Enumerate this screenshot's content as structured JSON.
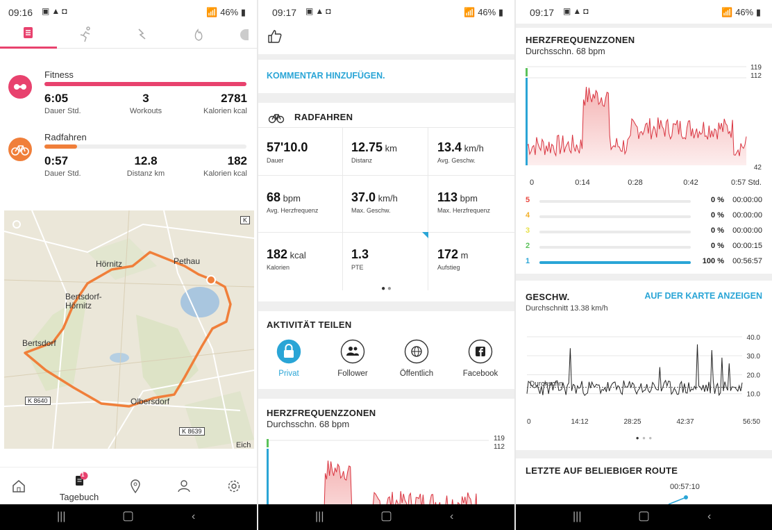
{
  "panel1": {
    "status": {
      "time": "09:16",
      "battery": "46%"
    },
    "tabs": [
      {
        "icon": "diary-icon"
      },
      {
        "icon": "running-icon"
      },
      {
        "icon": "activity-icon"
      },
      {
        "icon": "fire-icon"
      }
    ],
    "fitness": {
      "title": "Fitness",
      "stats": [
        {
          "value": "6:05",
          "label": "Dauer Std."
        },
        {
          "value": "3",
          "label": "Workouts"
        },
        {
          "value": "2781",
          "label": "Kalorien kcal"
        }
      ],
      "progress": 1.0
    },
    "cycling": {
      "title": "Radfahren",
      "stats": [
        {
          "value": "0:57",
          "label": "Dauer Std."
        },
        {
          "value": "12.8",
          "label": "Distanz km"
        },
        {
          "value": "182",
          "label": "Kalorien kcal"
        }
      ],
      "progress": 0.16
    },
    "map": {
      "places": [
        "Hörnitz",
        "Pethau",
        "Bertsdorf-Hörnitz",
        "Bertsdorf",
        "Olbersdorf",
        "Eich"
      ],
      "roads": [
        "K 8640",
        "K 8639",
        "K"
      ]
    },
    "bottom_nav": [
      {
        "label": "",
        "icon": "home-icon"
      },
      {
        "label": "Tagebuch",
        "icon": "diary-icon",
        "badge": "1"
      },
      {
        "label": "",
        "icon": "location-icon"
      },
      {
        "label": "",
        "icon": "profile-icon"
      },
      {
        "label": "",
        "icon": "settings-icon"
      }
    ]
  },
  "panel2": {
    "status": {
      "time": "09:17",
      "battery": "46%"
    },
    "comment_link": "KOMMENTAR HINZUFÜGEN.",
    "activity_title": "RADFAHREN",
    "metrics": [
      {
        "value": "57'10.0",
        "unit": "",
        "label": "Dauer"
      },
      {
        "value": "12.75",
        "unit": "km",
        "label": "Distanz"
      },
      {
        "value": "13.4",
        "unit": "km/h",
        "label": "Avg. Geschw."
      },
      {
        "value": "68",
        "unit": "bpm",
        "label": "Avg. Herzfrequenz"
      },
      {
        "value": "37.0",
        "unit": "km/h",
        "label": "Max. Geschw."
      },
      {
        "value": "113",
        "unit": "bpm",
        "label": "Max. Herzfrequenz"
      },
      {
        "value": "182",
        "unit": "kcal",
        "label": "Kalorien"
      },
      {
        "value": "1.3",
        "unit": "",
        "label": "PTE"
      },
      {
        "value": "172",
        "unit": "m",
        "label": "Aufstieg"
      }
    ],
    "share_title": "AKTIVITÄT TEILEN",
    "share_options": [
      {
        "label": "Privat",
        "icon": "lock-icon",
        "selected": true
      },
      {
        "label": "Follower",
        "icon": "followers-icon",
        "selected": false
      },
      {
        "label": "Öffentlich",
        "icon": "globe-icon",
        "selected": false
      },
      {
        "label": "Facebook",
        "icon": "facebook-icon",
        "selected": false
      }
    ],
    "hr_title": "HERZFREQUENZZONEN",
    "hr_sub": "Durchsschn. 68 bpm",
    "hr_y_top": "119",
    "hr_y_second": "112"
  },
  "panel3": {
    "status": {
      "time": "09:17",
      "battery": "46%"
    },
    "hr_title": "HERZFREQUENZZONEN",
    "hr_sub": "Durchsschn. 68 bpm",
    "hr_y": [
      "119",
      "112",
      "42"
    ],
    "hr_x": [
      "0",
      "0:14",
      "0:28",
      "0:42",
      "0:57 Std."
    ],
    "zones": [
      {
        "zone": "5",
        "color": "#e9473f",
        "percent": "0 %",
        "time": "00:00:00",
        "fill": 0
      },
      {
        "zone": "4",
        "color": "#f3b12c",
        "percent": "0 %",
        "time": "00:00:00",
        "fill": 0
      },
      {
        "zone": "3",
        "color": "#e7e04a",
        "percent": "0 %",
        "time": "00:00:00",
        "fill": 0
      },
      {
        "zone": "2",
        "color": "#5bc25a",
        "percent": "0 %",
        "time": "00:00:15",
        "fill": 0
      },
      {
        "zone": "1",
        "color": "#2aa5d6",
        "percent": "100 %",
        "time": "00:56:57",
        "fill": 1
      }
    ],
    "speed_title": "GESCHW.",
    "speed_link": "AUF DER KARTE ANZEIGEN",
    "speed_sub": "Durchschnitt 13.38 km/h",
    "speed_avg_label": "Durchschn.",
    "speed_y": [
      "40.0",
      "30.0",
      "20.0",
      "10.0"
    ],
    "speed_x": [
      "0",
      "14:12",
      "28:25",
      "42:37",
      "56:50"
    ],
    "route_title": "LETZTE AUF BELIEBIGER ROUTE",
    "route_time": "00:57:10"
  },
  "colors": {
    "accent": "#2aa5d6",
    "fitness": "#e8426e",
    "cycling": "#f07f3a",
    "hr_line": "#d9333f"
  }
}
